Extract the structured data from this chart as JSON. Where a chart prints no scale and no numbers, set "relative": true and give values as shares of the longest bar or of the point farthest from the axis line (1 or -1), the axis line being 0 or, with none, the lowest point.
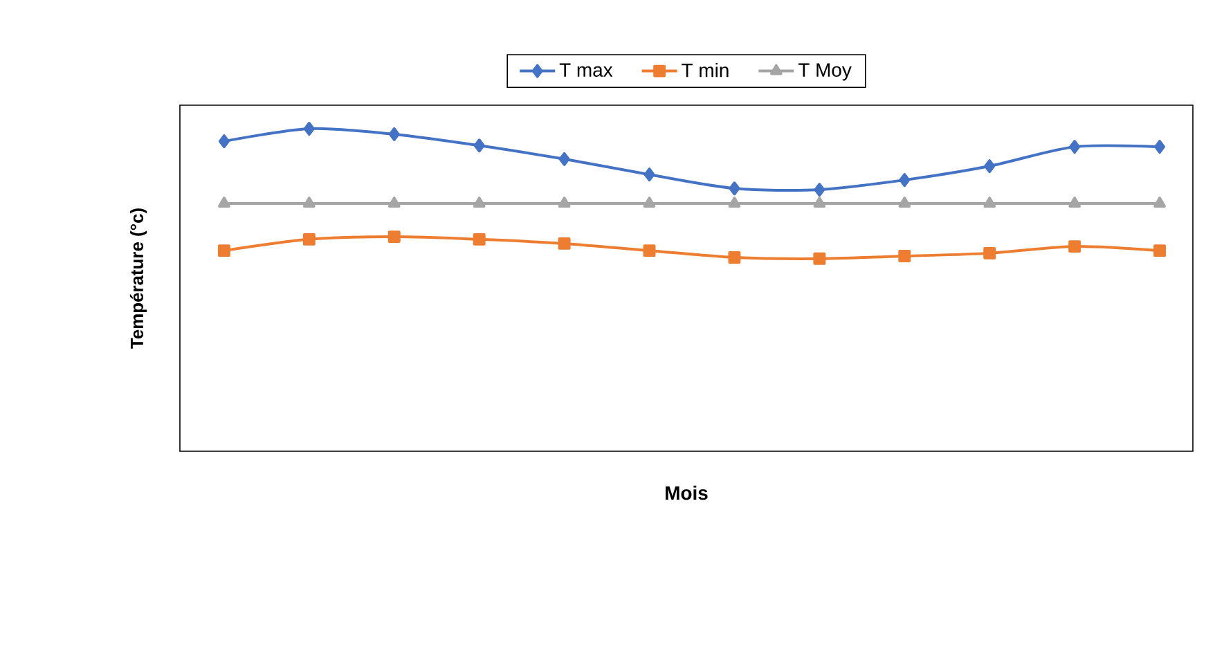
{
  "chart_data": {
    "type": "line",
    "relative": true,
    "xlabel": "Mois",
    "ylabel": "Température (°c)",
    "legend": "top",
    "categories": [
      null,
      null,
      null,
      null,
      null,
      null,
      null,
      null,
      null,
      null,
      null,
      null
    ],
    "series": [
      {
        "name": "T max",
        "color": "#4472c4",
        "marker": "diamond",
        "values": [
          0.961,
          1,
          0.983,
          0.948,
          0.906,
          0.858,
          0.815,
          0.811,
          0.841,
          0.884,
          0.944,
          0.944
        ]
      },
      {
        "name": "T min",
        "color": "#ed7d31",
        "marker": "square",
        "values": [
          0.622,
          0.657,
          0.665,
          0.657,
          0.644,
          0.622,
          0.601,
          0.597,
          0.605,
          0.614,
          0.635,
          0.622
        ]
      },
      {
        "name": "T Moy",
        "color": "#a5a5a5",
        "marker": "triangle",
        "values": [
          0.768,
          0.768,
          0.768,
          0.768,
          0.768,
          0.768,
          0.768,
          0.768,
          0.768,
          0.768,
          0.768,
          0.768
        ]
      }
    ]
  }
}
